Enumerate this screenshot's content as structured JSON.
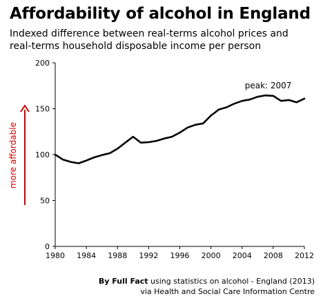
{
  "title": "Affordability of alcohol in England",
  "subtitle_lines": [
    "Indexed difference between real-terms alcohol prices and",
    "real-terms household disposable income per person"
  ],
  "side_label": "more affordable",
  "annotation": "peak: 2007",
  "footer": {
    "brand": "By Full Fact",
    "line1_rest": " using statistics on alcohol - England (2013)",
    "line2": "via Health and Social Care Information Centre"
  },
  "colors": {
    "line": "#000000",
    "arrow": "#cc0000",
    "side_label": "#cc0000",
    "axis": "#000000"
  },
  "chart_data": {
    "type": "line",
    "title": "Affordability of alcohol in England",
    "xlabel": "",
    "ylabel": "",
    "xlim": [
      1980,
      2012
    ],
    "ylim": [
      0,
      200
    ],
    "x_ticks": [
      1980,
      1984,
      1988,
      1992,
      1996,
      2000,
      2004,
      2008,
      2012
    ],
    "y_ticks": [
      0,
      50,
      100,
      150,
      200
    ],
    "grid": false,
    "series": [
      {
        "x": [
          1980,
          1981,
          1982,
          1983,
          1984,
          1985,
          1986,
          1987,
          1988,
          1989,
          1990,
          1991,
          1992,
          1993,
          1994,
          1995,
          1996,
          1997,
          1998,
          1999,
          2000,
          2001,
          2002,
          2003,
          2004,
          2005,
          2006,
          2007,
          2008,
          2009,
          2010,
          2011,
          2012
        ],
        "values": [
          100,
          94.5,
          92,
          90.5,
          93.5,
          97,
          99.5,
          101.5,
          106.5,
          113,
          119.5,
          113,
          113.5,
          115,
          117.5,
          119.5,
          124,
          129.5,
          132.5,
          134,
          142.5,
          149,
          151.5,
          155.5,
          158.5,
          160,
          163,
          164.5,
          164,
          158.5,
          159.5,
          157,
          161
        ]
      }
    ],
    "annotations": [
      {
        "text": "peak: 2007",
        "x": 2007,
        "y": 164.5
      }
    ]
  }
}
